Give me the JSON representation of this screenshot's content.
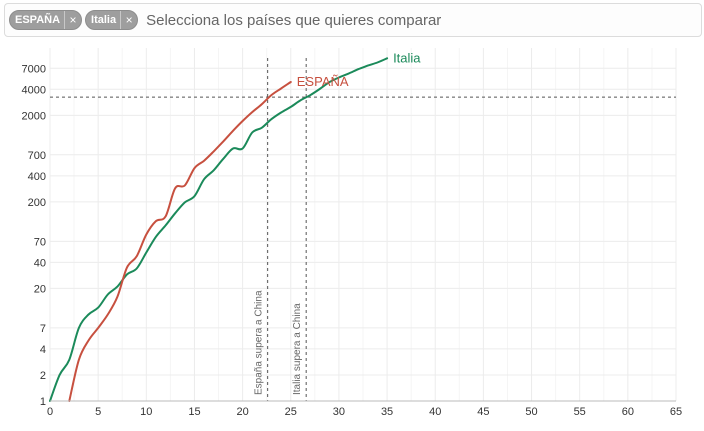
{
  "selector": {
    "chips": [
      {
        "label": "ESPAÑA",
        "remove": "×"
      },
      {
        "label": "Italia",
        "remove": "×"
      }
    ],
    "placeholder": "Selecciona los países que quieres comparar"
  },
  "chart_data": {
    "type": "line",
    "y_scale": "log",
    "xlim": [
      0,
      65
    ],
    "ylim": [
      1,
      12000
    ],
    "x_ticks": [
      0,
      5,
      10,
      15,
      20,
      25,
      30,
      35,
      40,
      45,
      50,
      55,
      60,
      65
    ],
    "y_ticks": [
      1,
      2,
      4,
      7,
      20,
      40,
      70,
      200,
      400,
      700,
      2000,
      4000,
      7000
    ],
    "grid": true,
    "series": [
      {
        "name": "Italia",
        "color": "#1b8a5a",
        "x": [
          0,
          1,
          2,
          3,
          4,
          5,
          6,
          7,
          8,
          9,
          10,
          11,
          12,
          13,
          14,
          15,
          16,
          17,
          18,
          19,
          20,
          21,
          22,
          23,
          24,
          25,
          26,
          27,
          28,
          29,
          30,
          31,
          32,
          33,
          34,
          35
        ],
        "y": [
          1,
          2,
          3,
          7,
          10,
          12,
          17,
          21,
          29,
          34,
          52,
          79,
          107,
          148,
          197,
          233,
          366,
          463,
          631,
          827,
          827,
          1266,
          1441,
          1809,
          2158,
          2503,
          2978,
          3405,
          4032,
          4825,
          5476,
          6077,
          6820,
          7503,
          8165,
          9134
        ]
      },
      {
        "name": "ESPAÑA",
        "color": "#c7503f",
        "x": [
          2,
          3,
          4,
          5,
          6,
          7,
          8,
          9,
          10,
          11,
          12,
          13,
          14,
          15,
          16,
          17,
          18,
          19,
          20,
          21,
          22,
          23,
          24,
          25
        ],
        "y": [
          1,
          3,
          5,
          7,
          10,
          16,
          35,
          47,
          84,
          120,
          136,
          288,
          309,
          491,
          598,
          767,
          1002,
          1326,
          1720,
          2182,
          2696,
          3434,
          4089,
          4858
        ]
      }
    ],
    "h_line": {
      "y": 3245
    },
    "annotations": [
      {
        "x": 22.6,
        "text": "España supera a China"
      },
      {
        "x": 26.6,
        "text": "Italia supera a China"
      }
    ]
  }
}
